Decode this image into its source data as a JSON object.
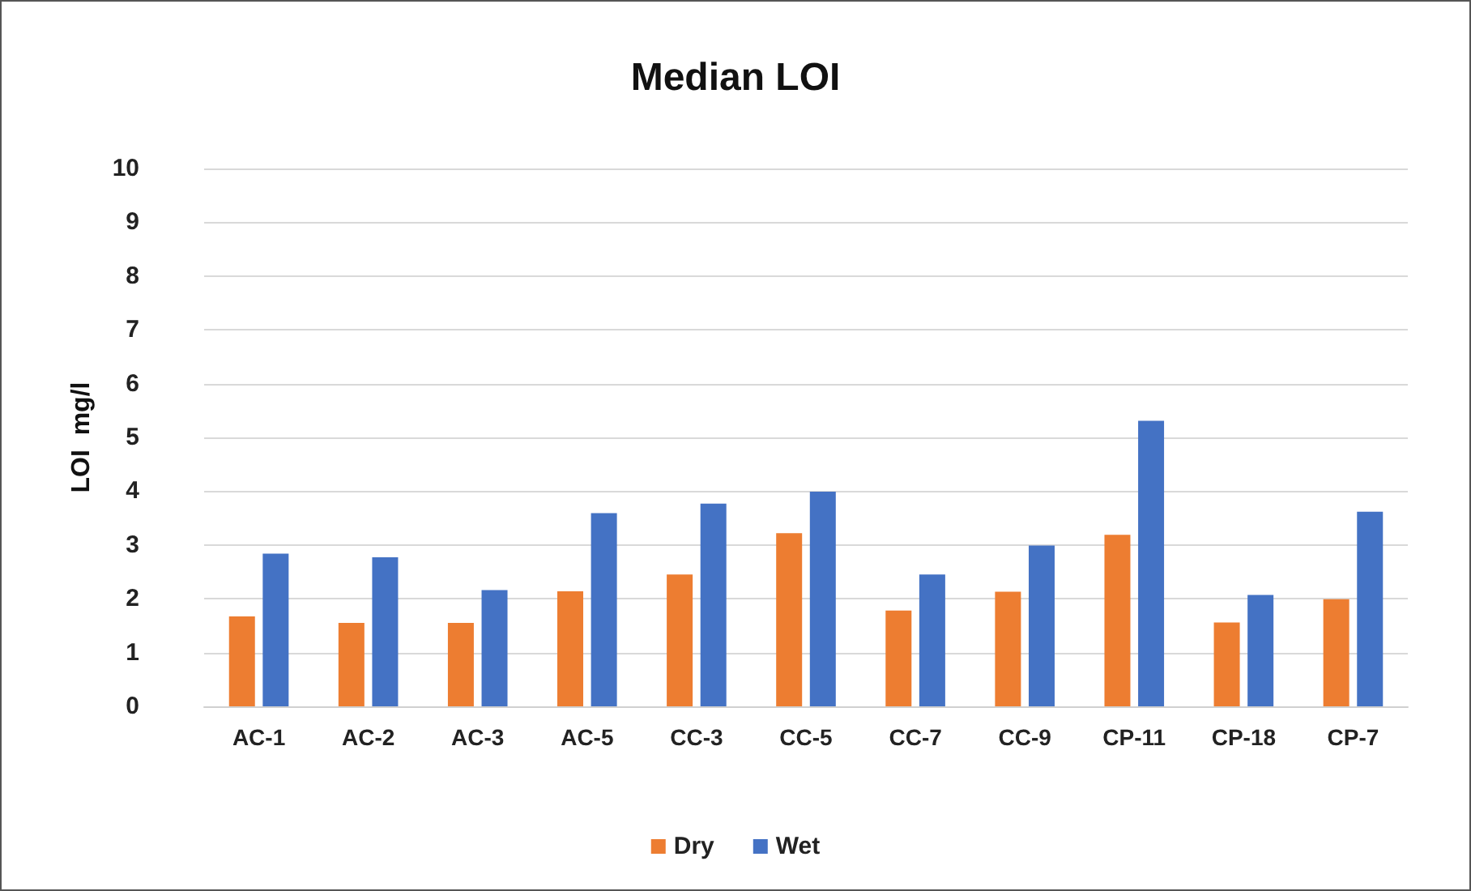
{
  "chart_data": {
    "type": "bar",
    "title": "Median LOI",
    "ylabel": "LOI  mg/l",
    "categories": [
      "AC-1",
      "AC-2",
      "AC-3",
      "AC-5",
      "CC-3",
      "CC-5",
      "CC-7",
      "CC-9",
      "CP-11",
      "CP-18",
      "CP-7"
    ],
    "series": [
      {
        "name": "Dry",
        "color": "#ed7d31",
        "values": [
          1.67,
          1.55,
          1.55,
          2.14,
          2.45,
          3.22,
          1.78,
          2.13,
          3.19,
          1.56,
          1.99
        ]
      },
      {
        "name": "Wet",
        "color": "#4472c4",
        "values": [
          2.84,
          2.77,
          2.16,
          3.59,
          3.77,
          3.99,
          2.45,
          2.99,
          5.31,
          2.07,
          3.62
        ]
      }
    ],
    "ylim": [
      0,
      10
    ],
    "yticks": [
      0,
      1,
      2,
      3,
      4,
      5,
      6,
      7,
      8,
      9,
      10
    ],
    "grid": "y",
    "legend": "bottom"
  }
}
